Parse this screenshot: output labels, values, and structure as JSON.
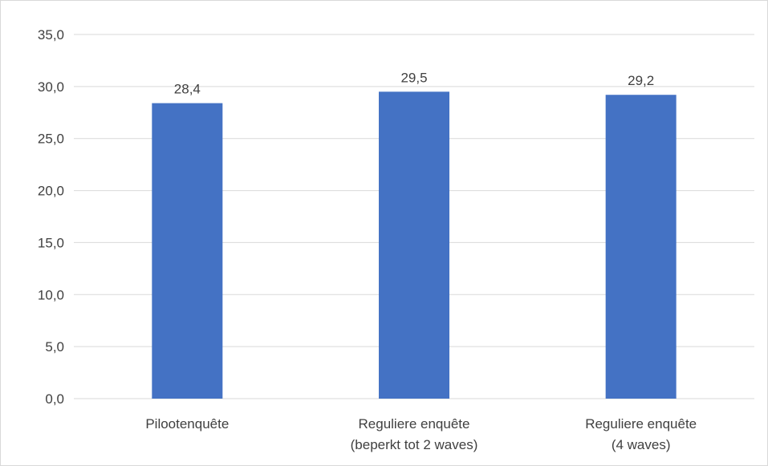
{
  "chart_data": {
    "type": "bar",
    "categories": [
      [
        "Pilootenquête"
      ],
      [
        "Reguliere enquête",
        "(beperkt tot 2 waves)"
      ],
      [
        "Reguliere enquête",
        "(4 waves)"
      ]
    ],
    "values": [
      28.4,
      29.5,
      29.2
    ],
    "value_labels": [
      "28,4",
      "29,5",
      "29,2"
    ],
    "ylim": [
      0,
      35
    ],
    "yticks": [
      0,
      5,
      10,
      15,
      20,
      25,
      30,
      35
    ],
    "ytick_labels": [
      "0,0",
      "5,0",
      "10,0",
      "15,0",
      "20,0",
      "25,0",
      "30,0",
      "35,0"
    ],
    "title": "",
    "xlabel": "",
    "ylabel": "",
    "grid": true,
    "legend": "none",
    "colors": {
      "bar": "#4472C4",
      "grid": "#d9d9d9",
      "text": "#404040"
    }
  }
}
